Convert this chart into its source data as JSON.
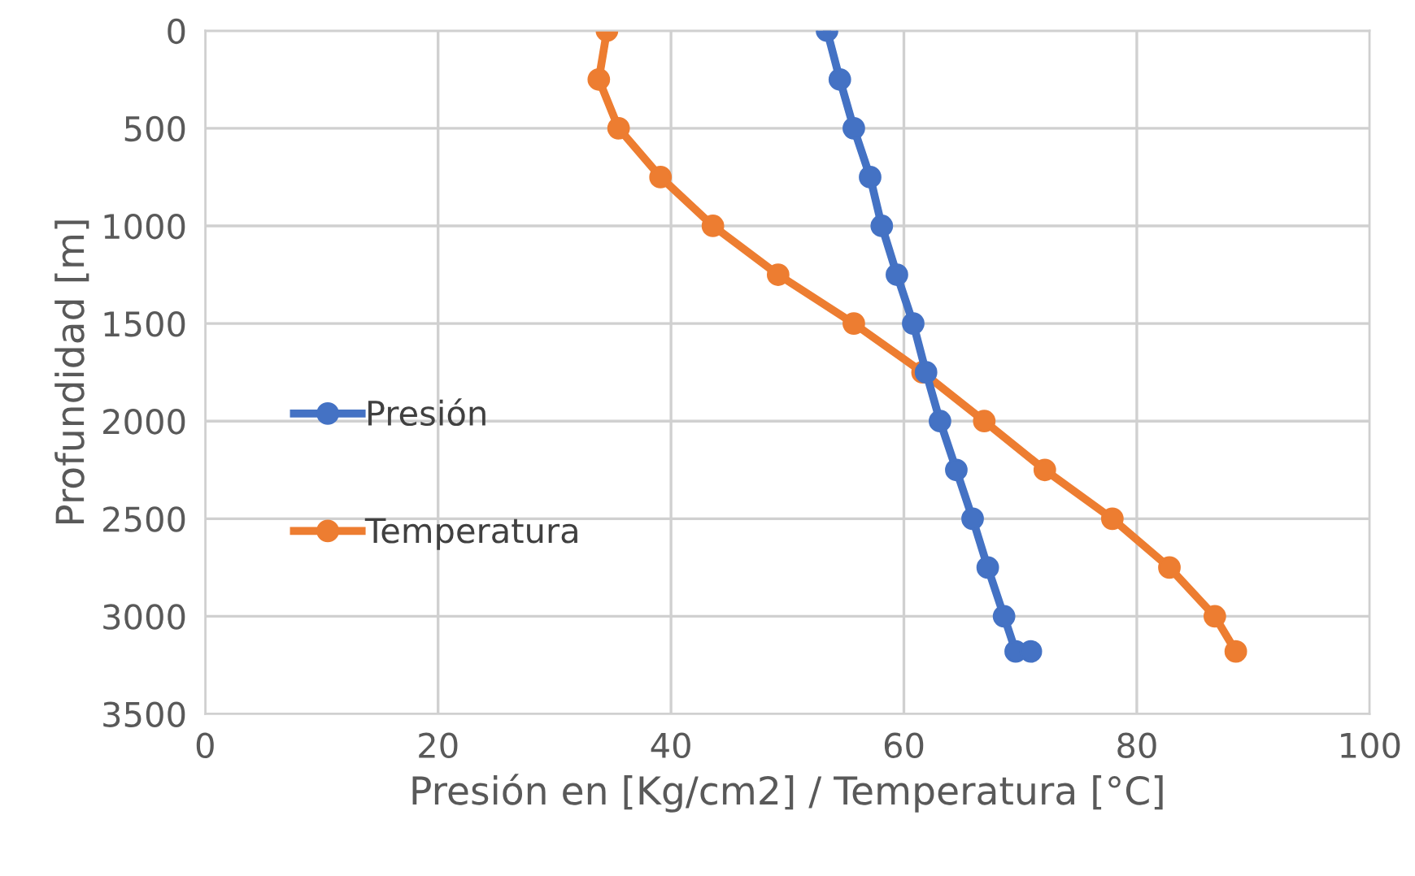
{
  "chart_data": {
    "type": "line",
    "xlabel": "Presión en [Kg/cm2] / Temperatura [°C]",
    "ylabel": "Profundidad [m]",
    "xlim": [
      0,
      100
    ],
    "xticks": [
      0,
      20,
      40,
      60,
      80,
      100
    ],
    "ylim": [
      3500,
      0
    ],
    "yticks": [
      0,
      500,
      1000,
      1500,
      2000,
      2500,
      3000,
      3500
    ],
    "grid": true,
    "legend": "left",
    "marker": "circle",
    "line_style": "solid",
    "series": [
      {
        "name": "Presión",
        "color": "#4472c4",
        "x": [
          53.4,
          54.5,
          55.7,
          57.1,
          58.1,
          59.4,
          60.8,
          61.9,
          63.1,
          64.5,
          65.9,
          67.2,
          68.6,
          69.6,
          70.9
        ],
        "values": [
          0,
          250,
          500,
          750,
          1000,
          1250,
          1500,
          1750,
          2000,
          2250,
          2500,
          2750,
          3000,
          3180,
          3180
        ]
      },
      {
        "name": "Temperatura",
        "color": "#ed7d31",
        "x": [
          34.5,
          33.8,
          35.5,
          39.1,
          43.6,
          49.2,
          55.7,
          61.6,
          66.9,
          72.1,
          77.9,
          82.8,
          86.7,
          88.5
        ],
        "values": [
          0,
          250,
          500,
          750,
          1000,
          1250,
          1500,
          1750,
          2000,
          2250,
          2500,
          2750,
          3000,
          3180
        ]
      }
    ]
  }
}
